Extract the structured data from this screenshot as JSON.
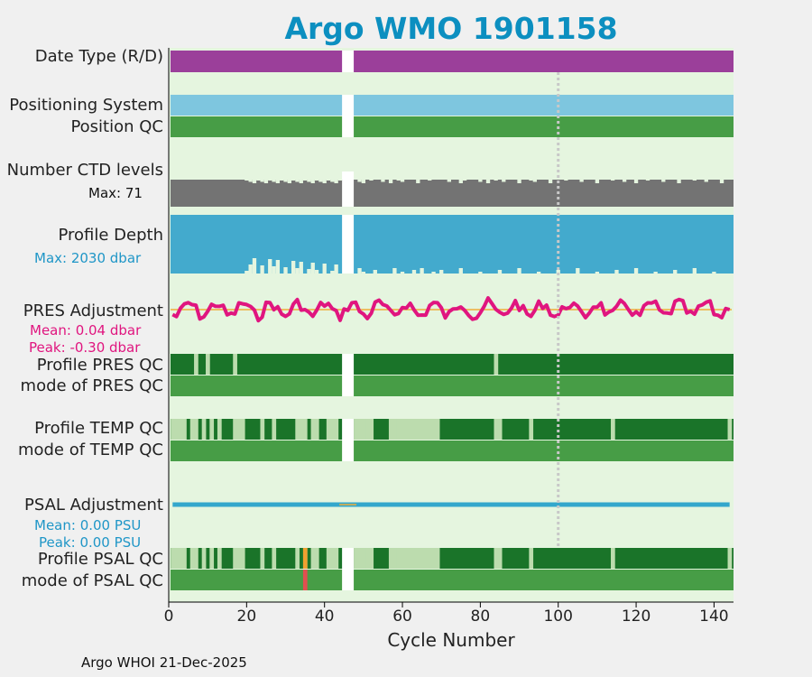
{
  "title": "Argo WMO 1901158",
  "footer": "Argo WHOI 21-Dec-2025",
  "colors": {
    "background": "#e5f5df",
    "date_type": "#9b3f9a",
    "positioning": "#7ec6df",
    "qc_good": "#479d46",
    "qc_dark": "#1a7429",
    "qc_light": "#bcdcae",
    "ctd": "#737373",
    "depth": "#43aacd",
    "pres_adj": "#e0157f",
    "psal_adj": "#34a7cc",
    "zero_line": "#f0ad3a",
    "qc_orange": "#f0a030",
    "qc_red": "#e05050",
    "title": "#0c8fc0",
    "marker_line": "#c8c8c8"
  },
  "labels": {
    "date_type": "Date Type (R/D)",
    "positioning": "Positioning System",
    "position_qc": "Position QC",
    "ctd_levels": "Number CTD levels",
    "ctd_max": "Max: 71",
    "profile_depth": "Profile Depth",
    "depth_max": "Max: 2030 dbar",
    "pres_adj": "PRES Adjustment",
    "pres_mean": "Mean: 0.04 dbar",
    "pres_peak": "Peak: -0.30 dbar",
    "profile_pres_qc": "Profile PRES QC",
    "mode_pres_qc": "mode of PRES QC",
    "profile_temp_qc": "Profile TEMP QC",
    "mode_temp_qc": "mode of TEMP QC",
    "psal_adj": "PSAL Adjustment",
    "psal_mean": "Mean: 0.00 PSU",
    "psal_peak": "Peak: 0.00 PSU",
    "profile_psal_qc": "Profile PSAL QC",
    "mode_psal_qc": "mode of PSAL QC"
  },
  "chart_data": {
    "type": "bar",
    "xlabel": "Cycle Number",
    "xlim": [
      0,
      145
    ],
    "xticks": [
      "0",
      "20",
      "40",
      "60",
      "80",
      "100",
      "120",
      "140"
    ],
    "xtick_values": [
      0,
      20,
      40,
      60,
      80,
      100,
      120,
      140
    ],
    "marker_cycle": 100,
    "data_gap": [
      44.5,
      47.5
    ],
    "ctd_max": 71,
    "depth_max_dbar": 2030,
    "pres_adjustment": {
      "mean": 0.04,
      "peak": -0.3,
      "unit": "dbar"
    },
    "psal_adjustment": {
      "mean": 0.0,
      "peak": 0.0,
      "unit": "PSU"
    },
    "ctd_levels_low_cycles": [
      20,
      21,
      22,
      23,
      24,
      25,
      26,
      27,
      28,
      29,
      30,
      31,
      32,
      33,
      34,
      35,
      36,
      37,
      38,
      39,
      40,
      41,
      42,
      43,
      44,
      49,
      50,
      52,
      55,
      57,
      59,
      60,
      64,
      67,
      72,
      75,
      76,
      80,
      82,
      84,
      86,
      90,
      93,
      94,
      98,
      102,
      106,
      110,
      114,
      117,
      120,
      123,
      127,
      131,
      135,
      138,
      142
    ],
    "depth_low_cycles": [
      20,
      21,
      22,
      24,
      26,
      27,
      28,
      30,
      32,
      33,
      34,
      36,
      37,
      38,
      40,
      42,
      43,
      49,
      50,
      53,
      58,
      60,
      63,
      65,
      68,
      70,
      75,
      80,
      85,
      90,
      95,
      100,
      105,
      110,
      115,
      120,
      125,
      130,
      135,
      140
    ],
    "pres_qc_light_cycles": [
      7,
      10,
      17,
      84
    ],
    "temp_qc_light_cycles": [
      1,
      2,
      3,
      4,
      6,
      7,
      9,
      11,
      13,
      17,
      18,
      19,
      24,
      27,
      33,
      34,
      35,
      37,
      38,
      41,
      42,
      43,
      48,
      49,
      50,
      51,
      52,
      57,
      58,
      59,
      60,
      61,
      62,
      63,
      64,
      65,
      66,
      67,
      68,
      69,
      84,
      85,
      93,
      114,
      144
    ],
    "psal_qc_light_cycles": [
      1,
      2,
      3,
      4,
      6,
      7,
      9,
      11,
      13,
      17,
      18,
      19,
      24,
      27,
      33,
      35,
      37,
      38,
      41,
      42,
      43,
      48,
      49,
      50,
      51,
      52,
      57,
      58,
      59,
      60,
      61,
      62,
      63,
      64,
      65,
      66,
      67,
      68,
      69,
      84,
      85,
      93,
      114,
      144
    ],
    "psal_qc_flag_cycle": 35
  }
}
